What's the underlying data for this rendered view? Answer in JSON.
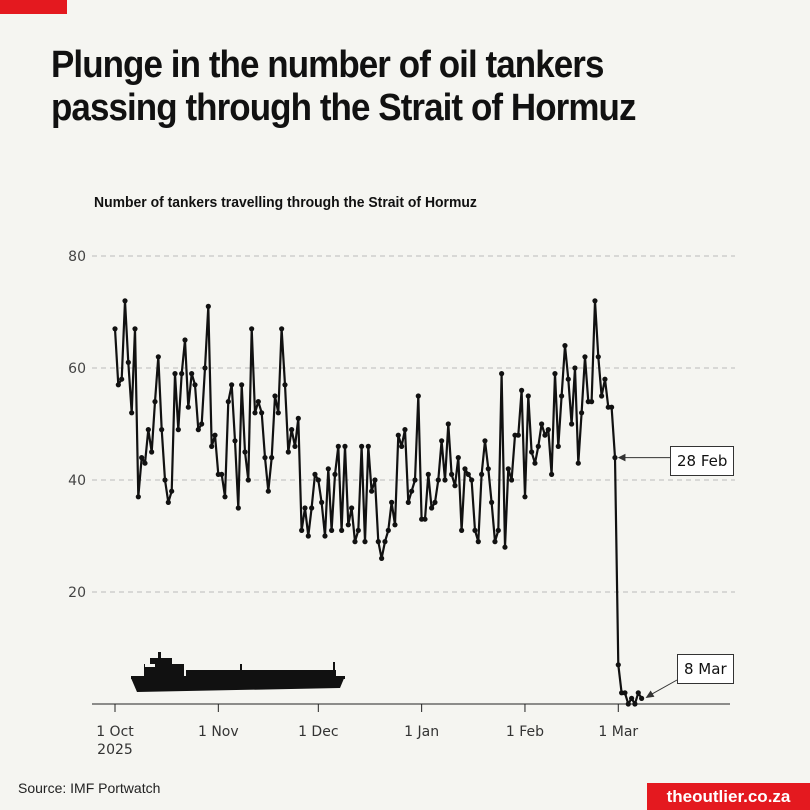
{
  "title": "Plunge in the number of oil tankers passing through the Strait of Hormuz",
  "source": "Source: IMF Portwatch",
  "logo": "theoutlier.co.za",
  "colors": {
    "accent": "#e4191f",
    "line": "#111111",
    "grid": "#bbbbbb",
    "background": "#f5f5f1"
  },
  "icons": [
    "oil-tanker-ship-illustration"
  ],
  "chart_data": {
    "type": "line",
    "title": "Number of tankers travelling through the Strait of Hormuz",
    "xlabel": "",
    "ylabel": "",
    "ylim": [
      0,
      80
    ],
    "yticks": [
      20,
      40,
      60,
      80
    ],
    "grid": true,
    "x_start": "2025-10-01",
    "x_step": "1 day",
    "xtick_labels": [
      {
        "label": "1 Oct",
        "sub": "2025",
        "date": "2025-10-01"
      },
      {
        "label": "1 Nov",
        "sub": "",
        "date": "2025-11-01"
      },
      {
        "label": "1 Dec",
        "sub": "",
        "date": "2025-12-01"
      },
      {
        "label": "1 Jan",
        "sub": "",
        "date": "2026-01-01"
      },
      {
        "label": "1 Feb",
        "sub": "",
        "date": "2026-02-01"
      },
      {
        "label": "1 Mar",
        "sub": "",
        "date": "2026-03-01"
      }
    ],
    "values": [
      67,
      57,
      58,
      72,
      61,
      52,
      67,
      37,
      44,
      43,
      49,
      45,
      54,
      62,
      49,
      40,
      36,
      38,
      59,
      49,
      59,
      65,
      53,
      59,
      57,
      49,
      50,
      60,
      71,
      46,
      48,
      41,
      41,
      37,
      54,
      57,
      47,
      35,
      57,
      45,
      40,
      67,
      52,
      54,
      52,
      44,
      38,
      44,
      55,
      52,
      67,
      57,
      45,
      49,
      46,
      51,
      31,
      35,
      30,
      35,
      41,
      40,
      36,
      30,
      42,
      31,
      41,
      46,
      31,
      46,
      32,
      35,
      29,
      31,
      46,
      29,
      46,
      38,
      40,
      29,
      26,
      29,
      31,
      36,
      32,
      48,
      46,
      49,
      36,
      38,
      40,
      55,
      33,
      33,
      41,
      35,
      36,
      40,
      47,
      40,
      50,
      41,
      39,
      44,
      31,
      42,
      41,
      40,
      31,
      29,
      41,
      47,
      42,
      36,
      29,
      31,
      59,
      28,
      42,
      40,
      48,
      48,
      56,
      37,
      55,
      45,
      43,
      46,
      50,
      48,
      49,
      41,
      59,
      46,
      55,
      64,
      58,
      50,
      60,
      43,
      52,
      62,
      54,
      54,
      72,
      62,
      55,
      58,
      53,
      53,
      44,
      7,
      2,
      2,
      0,
      1,
      0,
      2,
      1
    ],
    "annotations": [
      {
        "text": "28 Feb",
        "date": "2026-02-28",
        "value": 44
      },
      {
        "text": "8 Mar",
        "date": "2026-03-08",
        "value": 1
      }
    ]
  }
}
